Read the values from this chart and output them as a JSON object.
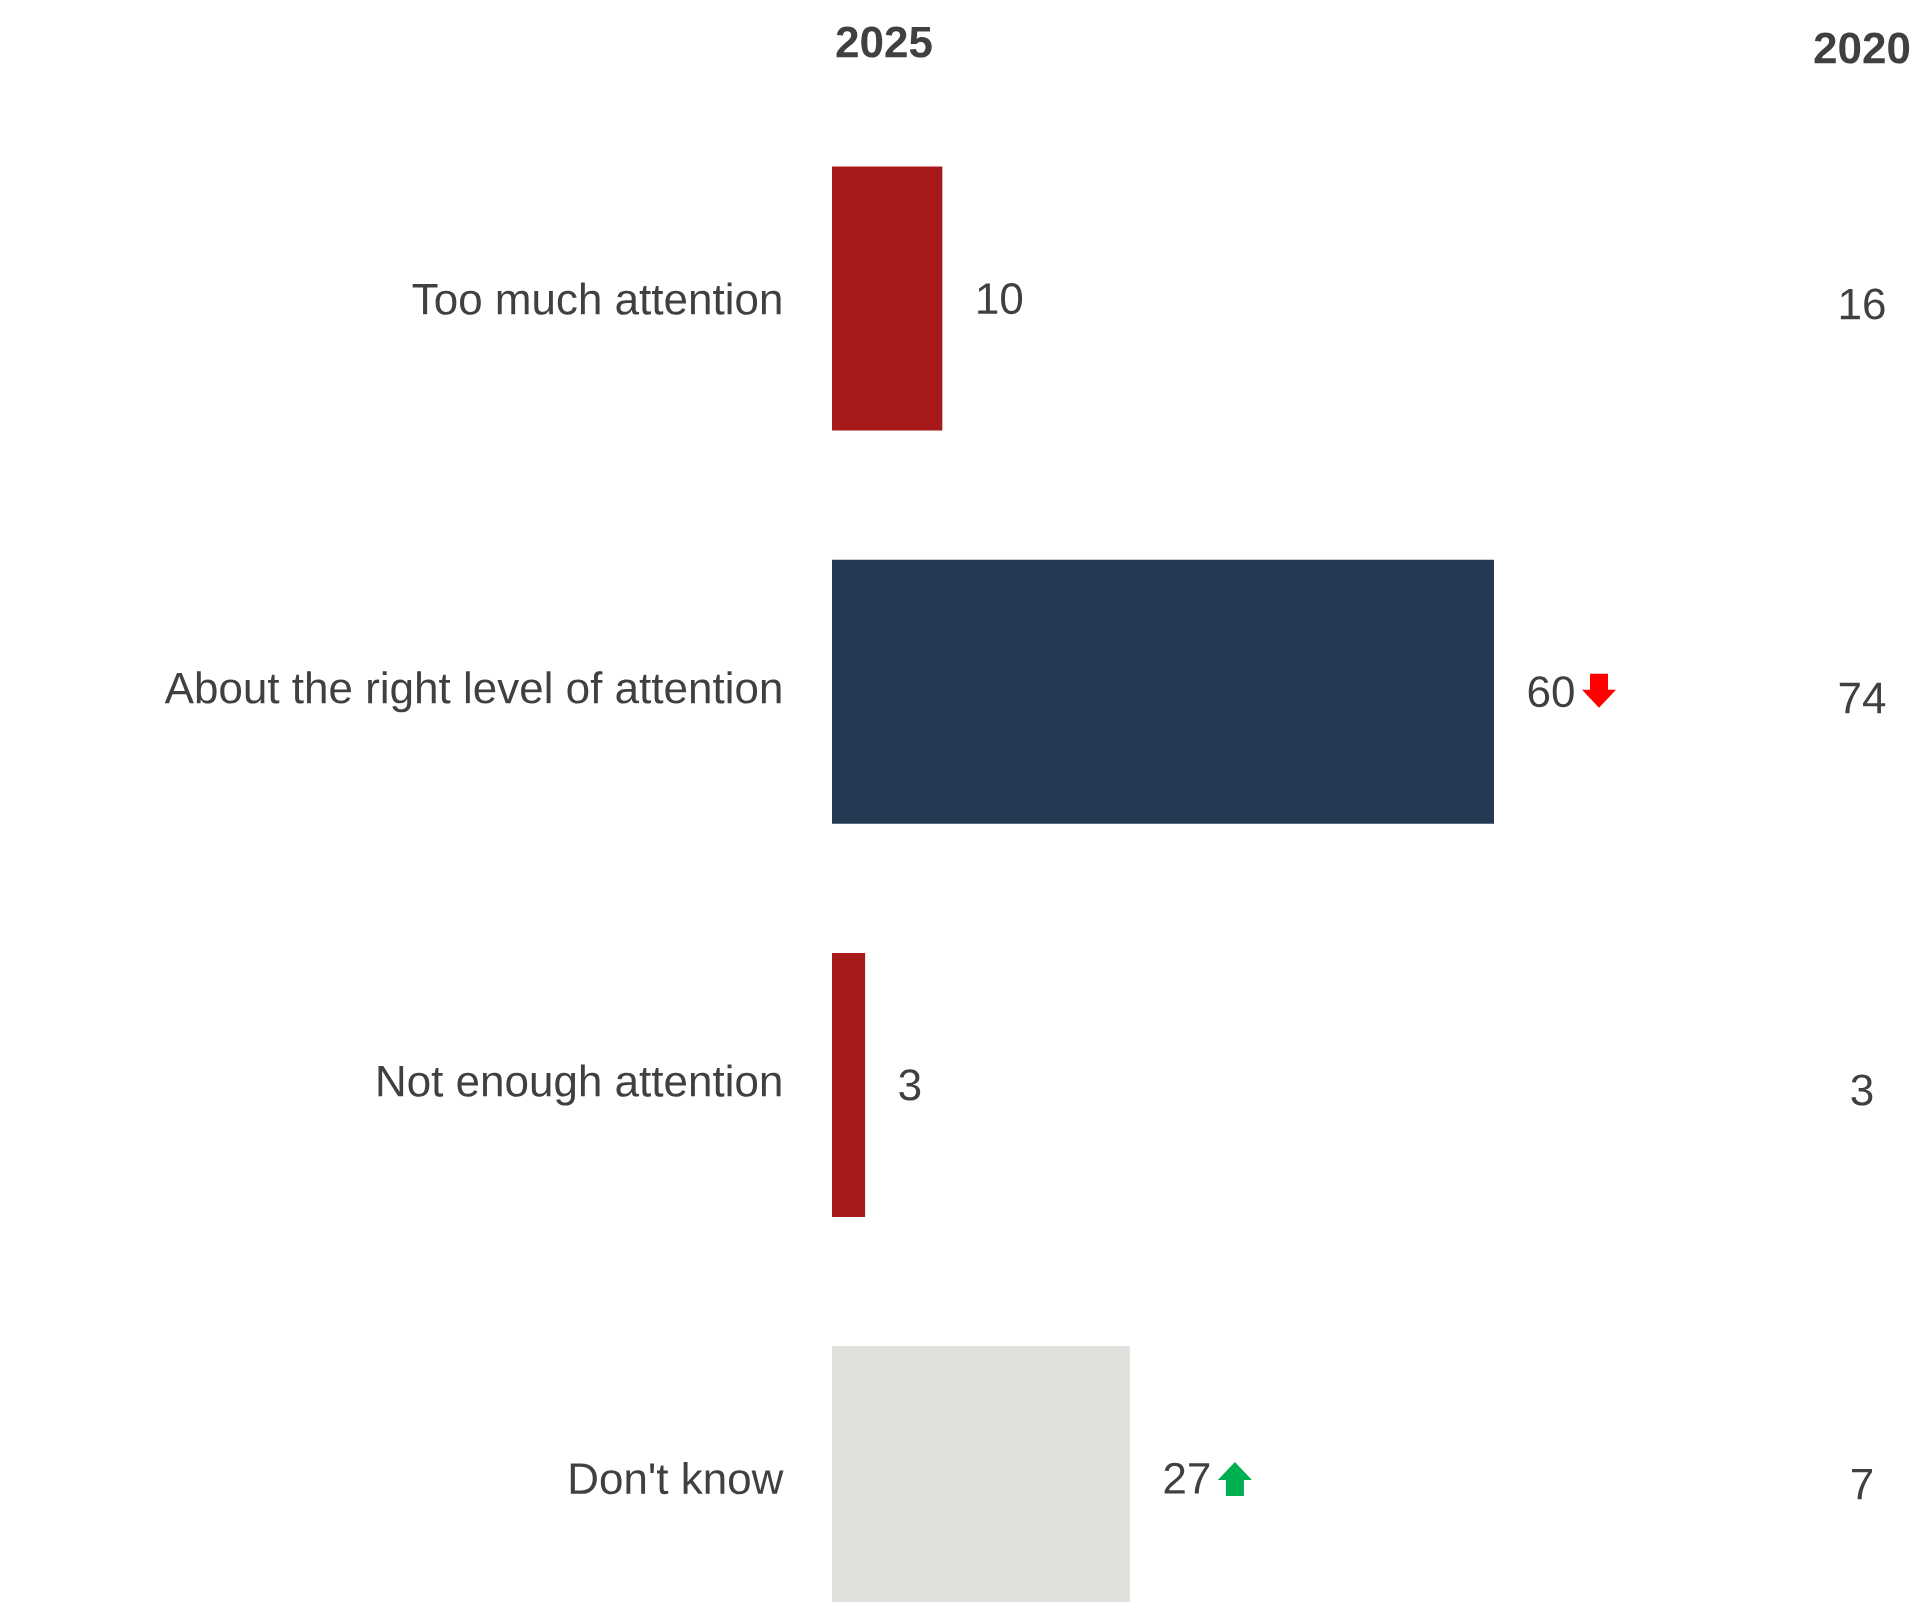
{
  "chart_data": {
    "type": "bar",
    "orientation": "horizontal",
    "title": "2025",
    "categories": [
      "Too much attention",
      "About the right level of attention",
      "Not enough attention",
      "Don't know"
    ],
    "values": [
      10,
      60,
      3,
      27
    ],
    "colors": [
      "#a81a1a",
      "#243a53",
      "#a81a1a",
      "#e0e0dc"
    ],
    "data_labels": true,
    "annotations": [
      "2020",
      "16",
      "74",
      "3",
      "7"
    ]
  }
}
